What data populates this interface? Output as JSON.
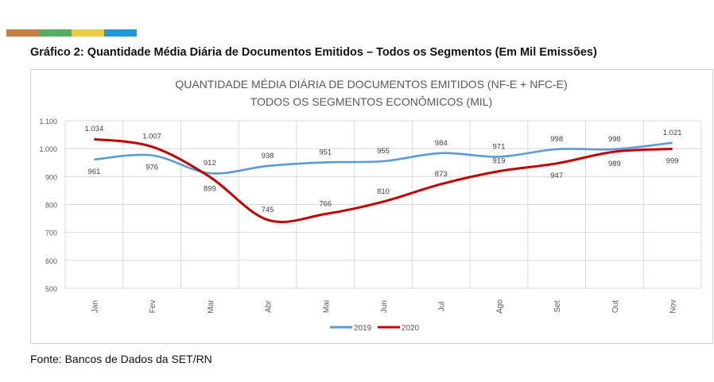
{
  "header": {
    "color_bars": [
      "#c47f45",
      "#55ad64",
      "#e8cc45",
      "#1f9ad6"
    ]
  },
  "caption": "Gráfico 2: Quantidade Média Diária de Documentos Emitidos – Todos os Segmentos (Em Mil Emissões)",
  "source": "Fonte: Bancos de Dados da SET/RN",
  "chart_data": {
    "type": "line",
    "title": [
      "QUANTIDADE MÉDIA DIÁRIA DE DOCUMENTOS EMITIDOS (NF-E + NFC-E)",
      "TODOS OS SEGMENTOS ECONÔMICOS (MIL)"
    ],
    "categories": [
      "Jan",
      "Fev",
      "Mar",
      "Abr",
      "Mai",
      "Jun",
      "Jul",
      "Ago",
      "Set",
      "Out",
      "Nov"
    ],
    "ylim": [
      500,
      1100
    ],
    "yticks": [
      "500",
      "600",
      "700",
      "800",
      "900",
      "1.000",
      "1.100"
    ],
    "grid": true,
    "legend": "bottom",
    "series": [
      {
        "name": "2019",
        "color": "#5b9bd5",
        "values": [
          961,
          976,
          912,
          938,
          951,
          955,
          984,
          971,
          998,
          998,
          1021
        ],
        "labels": [
          "961",
          "976",
          "912",
          "938",
          "951",
          "955",
          "984",
          "971",
          "998",
          "998",
          "1.021"
        ]
      },
      {
        "name": "2020",
        "color": "#c00000",
        "values": [
          1034,
          1007,
          899,
          745,
          766,
          810,
          873,
          919,
          947,
          989,
          999
        ],
        "labels": [
          "1.034",
          "1.007",
          "899",
          "745",
          "766",
          "810",
          "873",
          "919",
          "947",
          "989",
          "999"
        ]
      }
    ]
  }
}
